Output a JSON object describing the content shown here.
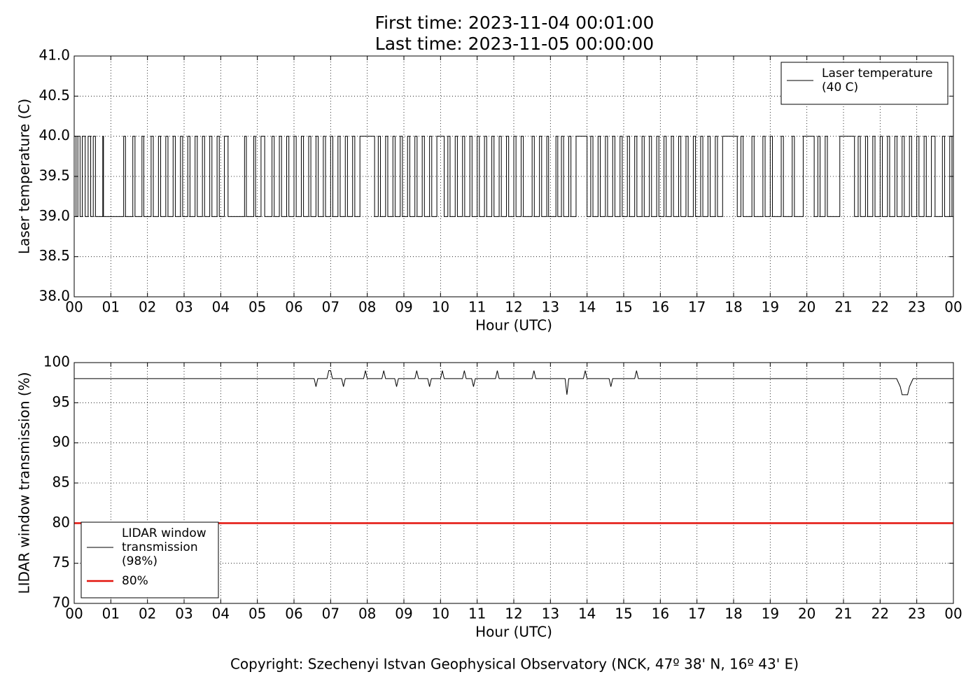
{
  "header": {
    "first": "First time: 2023-11-04 00:01:00",
    "last": "Last time: 2023-11-05 00:00:00"
  },
  "footer": "Copyright: Szechenyi Istvan Geophysical Observatory (NCK, 47º  38' N, 16º  43' E)",
  "chart_data": [
    {
      "type": "line",
      "x_label": "Hour (UTC)",
      "y_label": "Laser temperature (C)",
      "xlim": [
        0,
        24
      ],
      "ylim": [
        38,
        41
      ],
      "grid": true,
      "legend": "upper right",
      "xticks": [
        {
          "value": 0,
          "label": "00"
        },
        {
          "value": 1,
          "label": "01"
        },
        {
          "value": 2,
          "label": "02"
        },
        {
          "value": 3,
          "label": "03"
        },
        {
          "value": 4,
          "label": "04"
        },
        {
          "value": 5,
          "label": "05"
        },
        {
          "value": 6,
          "label": "06"
        },
        {
          "value": 7,
          "label": "07"
        },
        {
          "value": 8,
          "label": "08"
        },
        {
          "value": 9,
          "label": "09"
        },
        {
          "value": 10,
          "label": "10"
        },
        {
          "value": 11,
          "label": "11"
        },
        {
          "value": 12,
          "label": "12"
        },
        {
          "value": 13,
          "label": "13"
        },
        {
          "value": 14,
          "label": "14"
        },
        {
          "value": 15,
          "label": "15"
        },
        {
          "value": 16,
          "label": "16"
        },
        {
          "value": 17,
          "label": "17"
        },
        {
          "value": 18,
          "label": "18"
        },
        {
          "value": 19,
          "label": "19"
        },
        {
          "value": 20,
          "label": "20"
        },
        {
          "value": 21,
          "label": "21"
        },
        {
          "value": 22,
          "label": "22"
        },
        {
          "value": 23,
          "label": "23"
        },
        {
          "value": 24,
          "label": "00"
        }
      ],
      "yticks": [
        {
          "value": 38,
          "label": "38.0"
        },
        {
          "value": 38.5,
          "label": "38.5"
        },
        {
          "value": 39,
          "label": "39.0"
        },
        {
          "value": 39.5,
          "label": "39.5"
        },
        {
          "value": 40,
          "label": "40.0"
        },
        {
          "value": 40.5,
          "label": "40.5"
        },
        {
          "value": 41,
          "label": "41.0"
        }
      ],
      "series": [
        {
          "name": "Laser temperature\n(40 C)",
          "color": "#000000",
          "drawstyle": "steps-post",
          "x": [
            0,
            0.05,
            0.1,
            0.16,
            0.22,
            0.3,
            0.38,
            0.45,
            0.52,
            0.58,
            0.78,
            0.8,
            1.35,
            1.4,
            1.6,
            1.66,
            1.85,
            1.9,
            2.1,
            2.16,
            2.3,
            2.36,
            2.5,
            2.56,
            2.7,
            2.76,
            2.9,
            2.96,
            3.1,
            3.16,
            3.3,
            3.36,
            3.5,
            3.56,
            3.7,
            3.76,
            3.9,
            3.96,
            4.1,
            4.2,
            4.65,
            4.7,
            4.9,
            4.95,
            5.1,
            5.2,
            5.4,
            5.46,
            5.6,
            5.66,
            5.8,
            5.86,
            6.0,
            6.06,
            6.2,
            6.26,
            6.4,
            6.46,
            6.6,
            6.66,
            6.8,
            6.86,
            7.0,
            7.06,
            7.2,
            7.26,
            7.4,
            7.46,
            7.6,
            7.66,
            7.8,
            8.2,
            8.3,
            8.36,
            8.5,
            8.56,
            8.7,
            8.76,
            8.9,
            8.96,
            9.1,
            9.16,
            9.3,
            9.36,
            9.5,
            9.56,
            9.7,
            9.76,
            9.9,
            10.1,
            10.2,
            10.26,
            10.4,
            10.46,
            10.6,
            10.66,
            10.8,
            10.86,
            11.0,
            11.06,
            11.2,
            11.26,
            11.4,
            11.46,
            11.6,
            11.66,
            11.8,
            11.86,
            12.0,
            12.06,
            12.2,
            12.26,
            12.5,
            12.56,
            12.7,
            12.76,
            12.9,
            12.95,
            13.15,
            13.2,
            13.3,
            13.36,
            13.5,
            13.56,
            13.7,
            14.0,
            14.1,
            14.16,
            14.3,
            14.36,
            14.5,
            14.56,
            14.7,
            14.76,
            14.9,
            14.96,
            15.1,
            15.16,
            15.3,
            15.36,
            15.5,
            15.56,
            15.7,
            15.76,
            15.9,
            15.96,
            16.1,
            16.16,
            16.3,
            16.36,
            16.5,
            16.56,
            16.7,
            16.76,
            16.9,
            16.96,
            17.1,
            17.16,
            17.3,
            17.36,
            17.5,
            17.56,
            17.7,
            18.1,
            18.2,
            18.26,
            18.5,
            18.56,
            18.8,
            18.86,
            19.0,
            19.06,
            19.3,
            19.36,
            19.6,
            19.66,
            19.9,
            20.2,
            20.3,
            20.36,
            20.5,
            20.56,
            20.9,
            21.3,
            21.4,
            21.46,
            21.6,
            21.66,
            21.8,
            21.86,
            22.0,
            22.06,
            22.2,
            22.26,
            22.4,
            22.46,
            22.6,
            22.66,
            22.8,
            22.86,
            23.0,
            23.06,
            23.2,
            23.26,
            23.4,
            23.5,
            23.7,
            23.76,
            23.9,
            23.96
          ],
          "values": [
            40,
            39,
            40,
            39,
            40,
            39,
            40,
            39,
            40,
            39,
            40,
            39,
            40,
            39,
            40,
            39,
            40,
            39,
            40,
            39,
            40,
            39,
            40,
            39,
            40,
            39,
            40,
            39,
            40,
            39,
            40,
            39,
            40,
            39,
            40,
            39,
            40,
            39,
            40,
            39,
            40,
            39,
            40,
            39,
            40,
            39,
            40,
            39,
            40,
            39,
            40,
            39,
            40,
            39,
            40,
            39,
            40,
            39,
            40,
            39,
            40,
            39,
            40,
            39,
            40,
            39,
            40,
            39,
            40,
            39,
            40,
            39,
            40,
            39,
            40,
            39,
            40,
            39,
            40,
            39,
            40,
            39,
            40,
            39,
            40,
            39,
            40,
            39,
            40,
            39,
            40,
            39,
            40,
            39,
            40,
            39,
            40,
            39,
            40,
            39,
            40,
            39,
            40,
            39,
            40,
            39,
            40,
            39,
            40,
            39,
            40,
            39,
            40,
            39,
            40,
            39,
            40,
            39,
            40,
            39,
            40,
            39,
            40,
            39,
            40,
            39,
            40,
            39,
            40,
            39,
            40,
            39,
            40,
            39,
            40,
            39,
            40,
            39,
            40,
            39,
            40,
            39,
            40,
            39,
            40,
            39,
            40,
            39,
            40,
            39,
            40,
            39,
            40,
            39,
            40,
            39,
            40,
            39,
            40,
            39,
            40,
            39,
            40,
            39,
            40,
            39,
            40,
            39,
            40,
            39,
            40,
            39,
            40,
            39,
            40,
            39,
            40,
            39,
            40,
            39,
            40,
            39,
            40,
            39,
            40,
            39,
            40,
            39,
            40,
            39,
            40,
            39,
            40,
            39,
            40,
            39,
            40,
            39,
            40,
            39,
            40,
            39,
            40,
            39,
            40,
            39,
            40,
            39,
            40,
            39
          ]
        }
      ]
    },
    {
      "type": "line",
      "x_label": "Hour (UTC)",
      "y_label": "LIDAR window transmission (%)",
      "xlim": [
        0,
        24
      ],
      "ylim": [
        70,
        100
      ],
      "grid": true,
      "legend": "lower left",
      "xticks": [
        {
          "value": 0,
          "label": "00"
        },
        {
          "value": 1,
          "label": "01"
        },
        {
          "value": 2,
          "label": "02"
        },
        {
          "value": 3,
          "label": "03"
        },
        {
          "value": 4,
          "label": "04"
        },
        {
          "value": 5,
          "label": "05"
        },
        {
          "value": 6,
          "label": "06"
        },
        {
          "value": 7,
          "label": "07"
        },
        {
          "value": 8,
          "label": "08"
        },
        {
          "value": 9,
          "label": "09"
        },
        {
          "value": 10,
          "label": "10"
        },
        {
          "value": 11,
          "label": "11"
        },
        {
          "value": 12,
          "label": "12"
        },
        {
          "value": 13,
          "label": "13"
        },
        {
          "value": 14,
          "label": "14"
        },
        {
          "value": 15,
          "label": "15"
        },
        {
          "value": 16,
          "label": "16"
        },
        {
          "value": 17,
          "label": "17"
        },
        {
          "value": 18,
          "label": "18"
        },
        {
          "value": 19,
          "label": "19"
        },
        {
          "value": 20,
          "label": "20"
        },
        {
          "value": 21,
          "label": "21"
        },
        {
          "value": 22,
          "label": "22"
        },
        {
          "value": 23,
          "label": "23"
        },
        {
          "value": 24,
          "label": "00"
        }
      ],
      "yticks": [
        70,
        75,
        80,
        85,
        90,
        95,
        100
      ],
      "series": [
        {
          "name": "LIDAR window\ntransmission\n(98%)",
          "color": "#000000",
          "x": [
            0,
            6.55,
            6.6,
            6.65,
            6.9,
            6.95,
            7.0,
            7.05,
            7.3,
            7.35,
            7.4,
            7.9,
            7.95,
            8.0,
            8.4,
            8.45,
            8.5,
            8.75,
            8.8,
            8.85,
            9.3,
            9.35,
            9.4,
            9.65,
            9.7,
            9.75,
            10.0,
            10.05,
            10.1,
            10.6,
            10.65,
            10.7,
            10.85,
            10.9,
            10.95,
            11.5,
            11.55,
            11.6,
            12.5,
            12.55,
            12.6,
            13.4,
            13.45,
            13.5,
            13.9,
            13.95,
            14.0,
            14.6,
            14.65,
            14.7,
            15.3,
            15.35,
            15.4,
            22.45,
            22.55,
            22.6,
            22.75,
            22.8,
            22.9,
            24
          ],
          "values": [
            98,
            98,
            97,
            98,
            98,
            99,
            99,
            98,
            98,
            97,
            98,
            98,
            99,
            98,
            98,
            99,
            98,
            98,
            97,
            98,
            98,
            99,
            98,
            98,
            97,
            98,
            98,
            99,
            98,
            98,
            99,
            98,
            98,
            97,
            98,
            98,
            99,
            98,
            98,
            99,
            98,
            98,
            96,
            98,
            98,
            99,
            98,
            98,
            97,
            98,
            98,
            99,
            98,
            98,
            97,
            96,
            96,
            97,
            98,
            98
          ]
        },
        {
          "name": "80%",
          "color": "#e3120b",
          "width": 2.5,
          "x": [
            0,
            24
          ],
          "values": [
            80,
            80
          ]
        }
      ]
    }
  ]
}
